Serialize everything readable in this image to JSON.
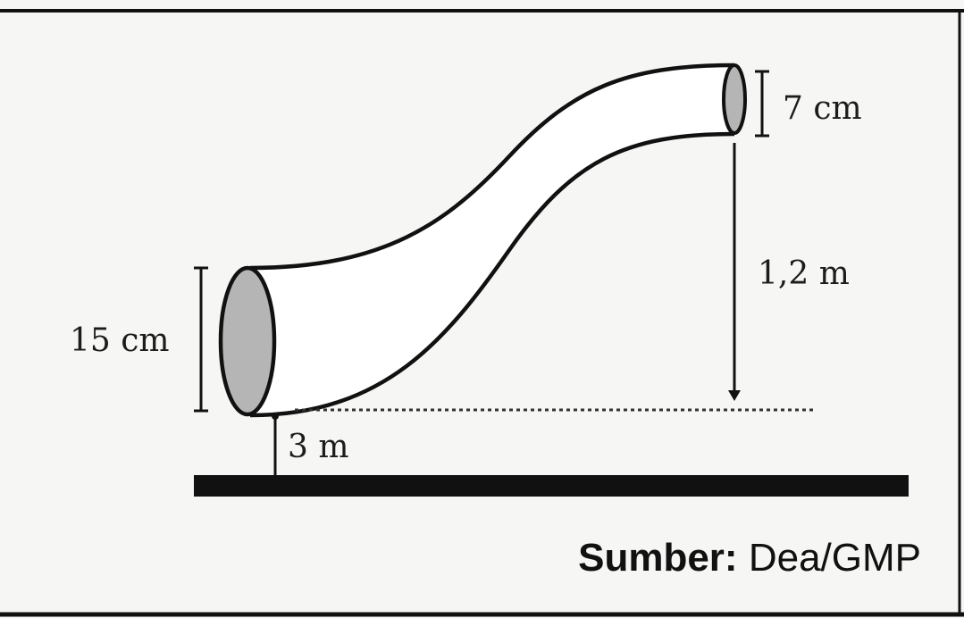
{
  "figure": {
    "labels": {
      "big_end_diameter": "15 cm",
      "small_end_diameter": "7 cm",
      "height_difference": "1,2 m",
      "base_height": "3 m"
    },
    "source": {
      "prefix": "Sumber:",
      "text": "Dea/GMP"
    },
    "colors": {
      "pipe_opening_fill": "#b5b5b5",
      "ink": "#111111",
      "background": "#f6f6f4"
    }
  }
}
